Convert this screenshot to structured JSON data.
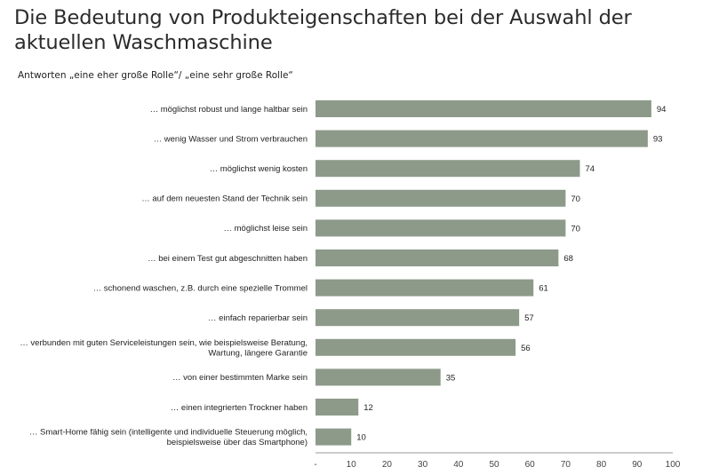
{
  "title": "Die Bedeutung von Produkteigenschaften bei der Auswahl der aktuellen Waschmaschine",
  "subtitle": "Antworten „eine eher große Rolle“/ „eine sehr große Rolle“",
  "colors": {
    "bar": "#8d9a8a",
    "axis": "#9a9a9a",
    "text": "#222222"
  },
  "chart_data": {
    "type": "bar",
    "orientation": "horizontal",
    "categories": [
      [
        "… möglichst robust und lange haltbar sein"
      ],
      [
        "… wenig Wasser und Strom verbrauchen"
      ],
      [
        "… möglichst wenig kosten"
      ],
      [
        "… auf dem neuesten Stand der Technik sein"
      ],
      [
        "… möglichst leise sein"
      ],
      [
        "… bei einem Test gut abgeschnitten haben"
      ],
      [
        "… schonend waschen, z.B. durch eine spezielle Trommel"
      ],
      [
        "… einfach reparierbar sein"
      ],
      [
        "… verbunden mit guten Serviceleistungen sein, wie beispielsweise Beratung,",
        "Wartung, längere Garantie"
      ],
      [
        "… von einer bestimmten Marke sein"
      ],
      [
        "… einen integrierten Trockner haben"
      ],
      [
        "… Smart-Home fähig sein (intelligente und individuelle Steuerung möglich,",
        "beispielsweise über das Smartphone)"
      ]
    ],
    "values": [
      94,
      93,
      74,
      70,
      70,
      68,
      61,
      57,
      56,
      35,
      12,
      10
    ],
    "xlim": [
      0,
      100
    ],
    "xticks": [
      "-",
      "10",
      "20",
      "30",
      "40",
      "50",
      "60",
      "70",
      "80",
      "90",
      "100"
    ],
    "data_labels": true,
    "grid": false
  }
}
